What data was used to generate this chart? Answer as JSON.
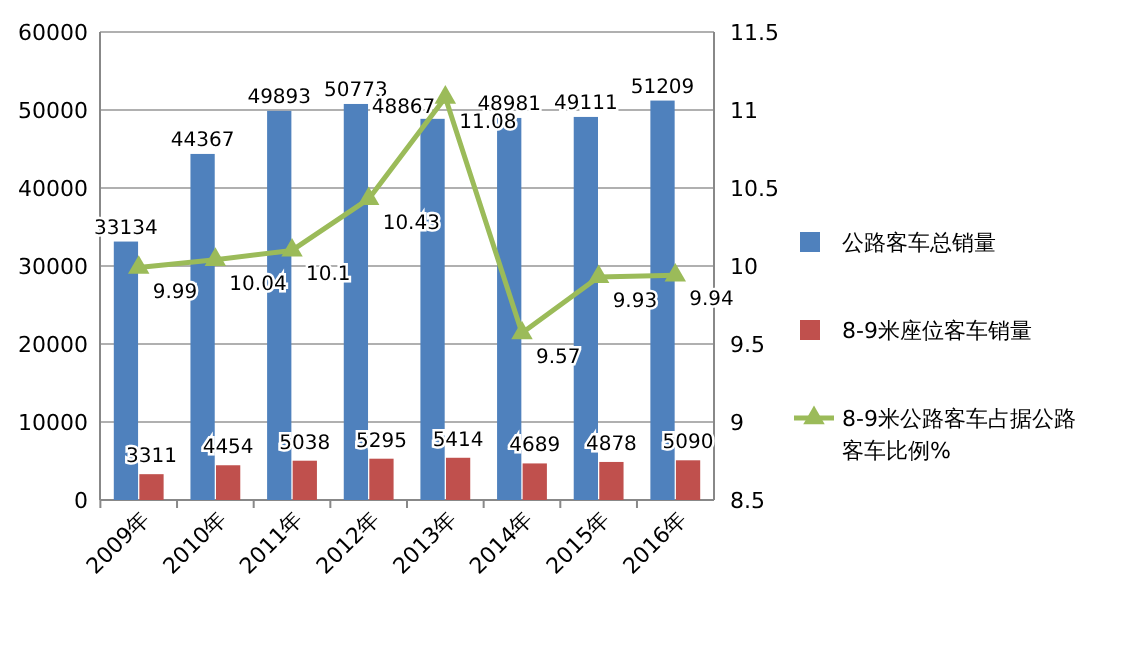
{
  "chart_data": {
    "type": "bar",
    "categories": [
      "2009年",
      "2010年",
      "2011年",
      "2012年",
      "2013年",
      "2014年",
      "2015年",
      "2016年"
    ],
    "series": [
      {
        "name": "公路客车总销量",
        "color": "#4f81bd",
        "values": [
          33134,
          44367,
          49893,
          50773,
          48867,
          48981,
          49111,
          51209
        ]
      },
      {
        "name": "8-9米座位客车销量",
        "color": "#c0504d",
        "values": [
          3311,
          4454,
          5038,
          5295,
          5414,
          4689,
          4878,
          5090
        ]
      },
      {
        "name": "8-9米公路客车占据公路客车比例%",
        "color": "#9bbb59",
        "type": "line",
        "axis": "y2",
        "marker": "triangle",
        "values": [
          9.99,
          10.04,
          10.1,
          10.43,
          11.08,
          9.57,
          9.93,
          9.94
        ]
      }
    ],
    "ylim": [
      0,
      60000
    ],
    "yticks": [
      0,
      10000,
      20000,
      30000,
      40000,
      50000,
      60000
    ],
    "y2lim": [
      8.5,
      11.5
    ],
    "y2ticks": [
      8.5,
      9,
      9.5,
      10,
      10.5,
      11,
      11.5
    ],
    "grid": "y",
    "legend": "right",
    "data_labels": true
  }
}
